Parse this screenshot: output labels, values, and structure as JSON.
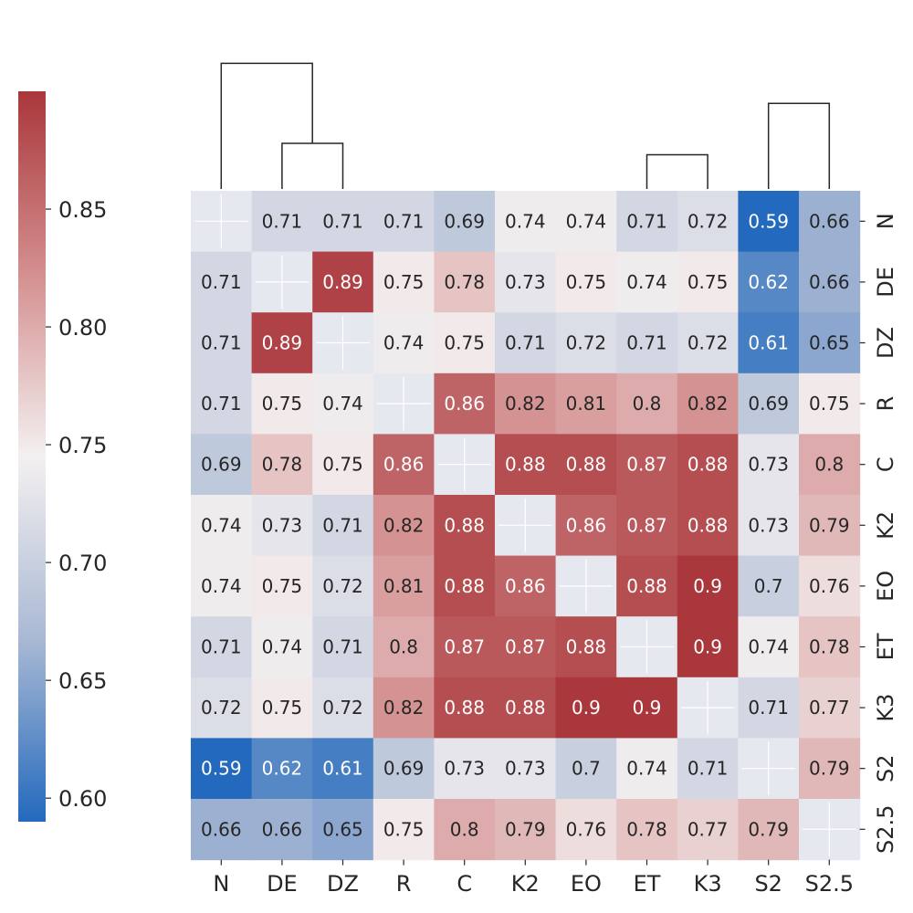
{
  "chart_data": {
    "type": "heatmap",
    "title": "",
    "labels": [
      "N",
      "DE",
      "DZ",
      "R",
      "C",
      "K2",
      "EO",
      "ET",
      "K3",
      "S2",
      "S2.5"
    ],
    "values": [
      [
        null,
        0.71,
        0.71,
        0.71,
        0.69,
        0.74,
        0.74,
        0.71,
        0.72,
        0.59,
        0.66
      ],
      [
        0.71,
        null,
        0.89,
        0.75,
        0.78,
        0.73,
        0.75,
        0.74,
        0.75,
        0.62,
        0.66
      ],
      [
        0.71,
        0.89,
        null,
        0.74,
        0.75,
        0.71,
        0.72,
        0.71,
        0.72,
        0.61,
        0.65
      ],
      [
        0.71,
        0.75,
        0.74,
        null,
        0.86,
        0.82,
        0.81,
        0.8,
        0.82,
        0.69,
        0.75
      ],
      [
        0.69,
        0.78,
        0.75,
        0.86,
        null,
        0.88,
        0.88,
        0.87,
        0.88,
        0.73,
        0.8
      ],
      [
        0.74,
        0.73,
        0.71,
        0.82,
        0.88,
        null,
        0.86,
        0.87,
        0.88,
        0.73,
        0.79
      ],
      [
        0.74,
        0.75,
        0.72,
        0.81,
        0.88,
        0.86,
        null,
        0.88,
        0.9,
        0.7,
        0.76
      ],
      [
        0.71,
        0.74,
        0.71,
        0.8,
        0.87,
        0.87,
        0.88,
        null,
        0.9,
        0.74,
        0.78
      ],
      [
        0.72,
        0.75,
        0.72,
        0.82,
        0.88,
        0.88,
        0.9,
        0.9,
        null,
        0.71,
        0.77
      ],
      [
        0.59,
        0.62,
        0.61,
        0.69,
        0.73,
        0.73,
        0.7,
        0.74,
        0.71,
        null,
        0.79
      ],
      [
        0.66,
        0.66,
        0.65,
        0.75,
        0.8,
        0.79,
        0.76,
        0.78,
        0.77,
        0.79,
        null
      ]
    ],
    "value_range": [
      0.59,
      0.9
    ],
    "colormap": "vlag",
    "colormap_stops": [
      "#2369bd",
      "#a9b9d4",
      "#f4f0f0",
      "#d48f8f",
      "#a9373b"
    ],
    "colorbar_ticks": [
      "0.60",
      "0.65",
      "0.70",
      "0.75",
      "0.80",
      "0.85"
    ],
    "colorbar_tick_values": [
      0.6,
      0.65,
      0.7,
      0.75,
      0.8,
      0.85
    ],
    "diagonal_color": "#e6e8f0",
    "dendrogram": {
      "merges": [
        {
          "left": "K3",
          "right": "ET",
          "height": 0.18
        },
        {
          "left": "EO",
          "right": "merge-ET-K3",
          "height": 0.2
        },
        {
          "left": "K2",
          "right": "merge-EO-ET-K3",
          "height": 0.22
        },
        {
          "left": "C",
          "right": "merge-K2-EO-ET-K3",
          "height": 0.24
        },
        {
          "left": "DE",
          "right": "DZ",
          "height": 0.24
        },
        {
          "left": "R",
          "right": "merge-C-K2-EO-ET-K3",
          "height": 0.3
        },
        {
          "left": "S2",
          "right": "S2.5",
          "height": 0.45
        },
        {
          "left": "merge-R-C-K2-EO-ET-K3",
          "right": "merge-S2-S2.5",
          "height": 0.68
        },
        {
          "left": "N",
          "right": "merge-DE-DZ",
          "height": 0.66
        },
        {
          "left": "merge-N-DE-DZ",
          "right": "merge-R-S2.5",
          "height": 0.83
        }
      ],
      "line_color": "#262626"
    }
  }
}
